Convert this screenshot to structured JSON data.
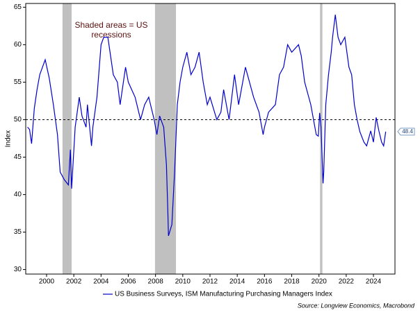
{
  "chart_data": {
    "type": "line",
    "y_label": "Index",
    "annotation": "Shaded areas = US recessions",
    "source": "Source: Longview Economics, Macrobond",
    "xlim": [
      1998.47,
      2025.58
    ],
    "ylim": [
      29.4,
      65.5
    ],
    "xticks": [
      2000,
      2002,
      2004,
      2006,
      2008,
      2010,
      2012,
      2014,
      2016,
      2018,
      2020,
      2022,
      2024
    ],
    "yticks": [
      30,
      35,
      40,
      45,
      50,
      55,
      60,
      65
    ],
    "reference_line": 50,
    "recession_color": "#c0c0c0",
    "recessions": [
      [
        2001.17,
        2001.84
      ],
      [
        2007.96,
        2009.5
      ],
      [
        2020.08,
        2020.25
      ]
    ],
    "x": [
      1998.6,
      1998.75,
      1998.9,
      1999.1,
      1999.3,
      1999.5,
      1999.7,
      1999.9,
      2000.2,
      2000.5,
      2000.8,
      2001.0,
      2001.3,
      2001.6,
      2001.75,
      2001.84,
      2002.1,
      2002.4,
      2002.6,
      2002.9,
      2003.0,
      2003.3,
      2003.4,
      2003.7,
      2004.0,
      2004.2,
      2004.5,
      2004.9,
      2005.2,
      2005.4,
      2005.8,
      2006.0,
      2006.5,
      2006.9,
      2007.2,
      2007.5,
      2007.9,
      2008.1,
      2008.3,
      2008.6,
      2008.8,
      2008.9,
      2008.95,
      2009.2,
      2009.4,
      2009.6,
      2009.8,
      2010.0,
      2010.3,
      2010.6,
      2010.9,
      2011.2,
      2011.5,
      2011.8,
      2012.0,
      2012.5,
      2012.8,
      2013.0,
      2013.4,
      2013.8,
      2014.1,
      2014.6,
      2014.9,
      2015.2,
      2015.6,
      2015.9,
      2016.0,
      2016.3,
      2016.8,
      2017.1,
      2017.4,
      2017.7,
      2018.0,
      2018.5,
      2018.7,
      2018.95,
      2019.1,
      2019.4,
      2019.8,
      2019.95,
      2020.05,
      2020.15,
      2020.3,
      2020.35,
      2020.5,
      2020.7,
      2020.9,
      2021.0,
      2021.2,
      2021.4,
      2021.6,
      2021.9,
      2022.2,
      2022.4,
      2022.6,
      2022.8,
      2023.0,
      2023.3,
      2023.5,
      2023.8,
      2024.0,
      2024.2,
      2024.4,
      2024.6,
      2024.75,
      2024.9
    ],
    "series": [
      {
        "name": "US Business Surveys, ISM Manufacturing Purchasing Managers Index",
        "color": "#0000cc",
        "values": [
          49,
          48.7,
          46.8,
          51.5,
          54,
          56,
          57,
          58,
          55.5,
          52,
          48,
          43,
          42,
          41.3,
          46,
          40.8,
          49,
          53,
          50.5,
          49,
          52,
          46.5,
          49,
          53,
          60,
          61,
          61,
          56,
          55,
          52,
          57,
          55,
          53,
          50,
          52,
          53,
          50,
          48,
          50.5,
          49,
          44,
          38,
          34.5,
          36,
          43,
          52,
          55,
          57,
          59,
          56,
          57,
          59,
          55,
          52,
          53,
          50,
          51,
          54,
          50,
          56,
          52,
          57,
          55,
          53,
          51,
          48,
          49,
          51,
          52,
          56,
          57,
          60,
          59,
          60,
          58.5,
          55,
          54,
          52,
          48,
          47.8,
          50.9,
          49,
          41.5,
          43,
          52,
          56,
          59,
          61,
          64,
          61,
          60,
          61,
          57,
          56,
          52,
          50,
          48.4,
          47,
          46.5,
          48.5,
          47,
          50.3,
          48.5,
          47,
          46.5,
          48.4
        ]
      }
    ]
  }
}
